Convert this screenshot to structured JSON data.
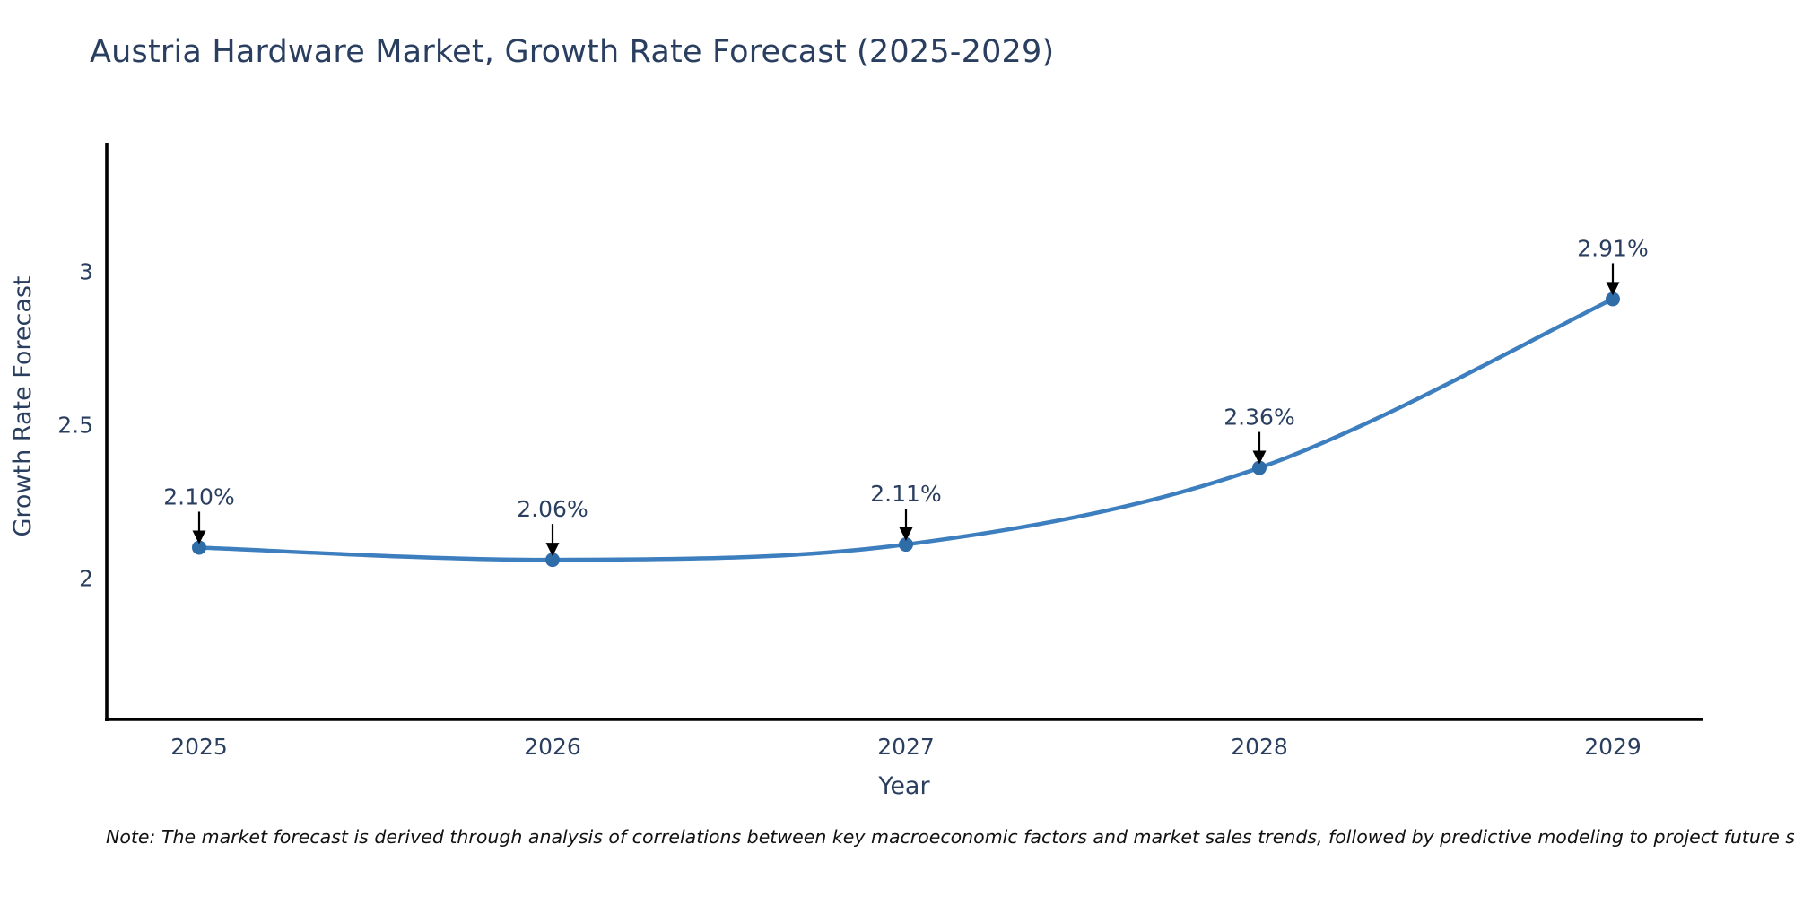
{
  "chart": {
    "title": "Austria Hardware Market, Growth Rate Forecast (2025-2029)",
    "note": "Note: The market forecast is derived through analysis of correlations between key macroeconomic factors and market sales trends, followed by predictive modeling to project future sales"
  },
  "chart_data": {
    "type": "line",
    "title": "Austria Hardware Market, Growth Rate Forecast (2025-2029)",
    "xlabel": "Year",
    "ylabel": "Growth Rate Forecast",
    "categories": [
      "2025",
      "2026",
      "2027",
      "2028",
      "2029"
    ],
    "values": [
      2.1,
      2.06,
      2.11,
      2.36,
      2.91
    ],
    "series": [
      {
        "name": "Growth Rate Forecast",
        "values": [
          2.1,
          2.06,
          2.11,
          2.36,
          2.91
        ]
      }
    ],
    "point_labels": [
      "2.10%",
      "2.06%",
      "2.11%",
      "2.36%",
      "2.91%"
    ],
    "yticks": [
      2,
      2.5,
      3
    ],
    "ytick_labels": [
      "2",
      "2.5",
      "3"
    ],
    "ylim": [
      1.54,
      3.42
    ],
    "line_shape": "spline",
    "grid": false,
    "legend": "none",
    "annotation_style": "label-with-down-arrow",
    "colors": {
      "line": "#3d7ebf",
      "marker": "#2f6da8",
      "text": "#2a3f5f",
      "axis": "#000000",
      "arrow": "#000000",
      "background": "#ffffff"
    }
  }
}
